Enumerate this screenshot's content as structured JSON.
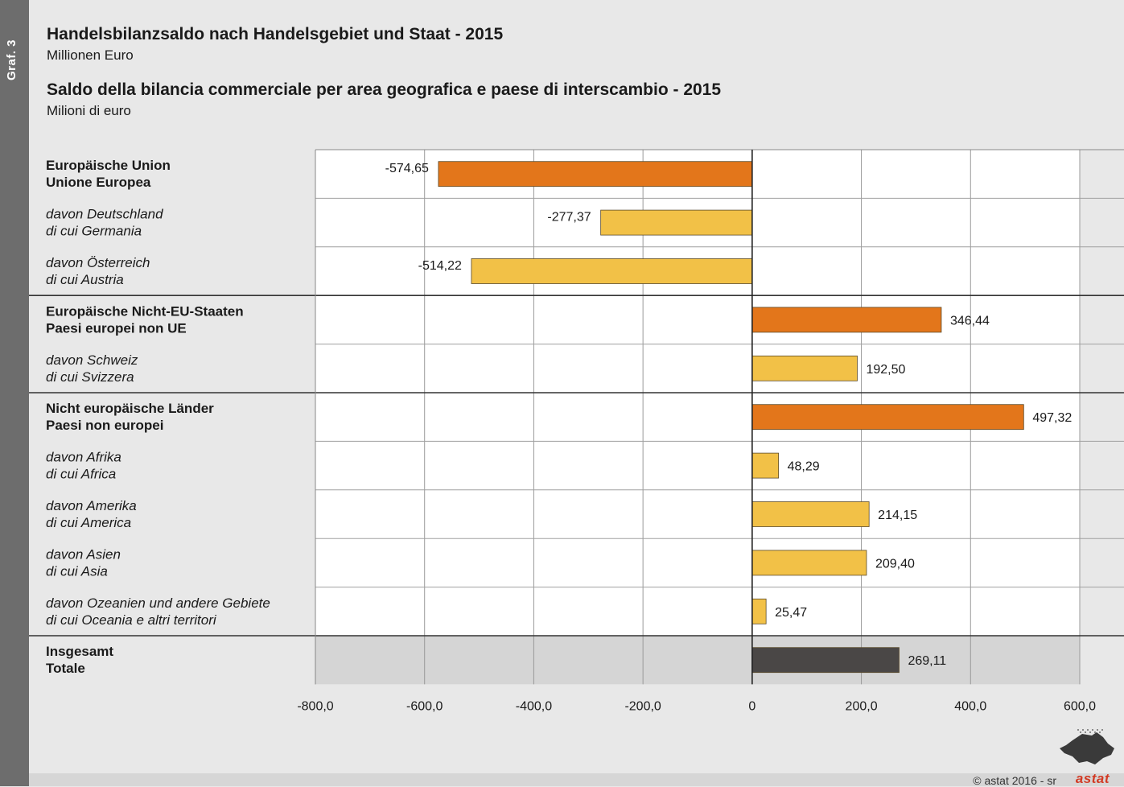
{
  "graf_tag": "Graf. 3",
  "titles": {
    "de_title": "Handelsbilanzsaldo nach Handelsgebiet und Staat - 2015",
    "de_unit": "Millionen Euro",
    "it_title": "Saldo della bilancia commerciale per area geografica e paese di interscambio - 2015",
    "it_unit": "Milioni di euro"
  },
  "colors": {
    "group_bar": "#e3761b",
    "sub_bar": "#f2c147",
    "total_bar": "#4a4746",
    "plot_bg": "#ffffff",
    "total_row_bg": "#d5d5d5",
    "page_bg": "#e8e8e8",
    "logo_red": "#d23a24"
  },
  "chart_data": {
    "type": "bar",
    "orientation": "horizontal",
    "title": "Handelsbilanzsaldo nach Handelsgebiet und Staat - 2015",
    "unit": "Millionen Euro",
    "xlim": [
      -800,
      600
    ],
    "x_ticks": [
      -800,
      -600,
      -400,
      -200,
      0,
      200,
      400,
      600
    ],
    "x_tick_labels": [
      "-800,0",
      "-600,0",
      "-400,0",
      "-200,0",
      "0",
      "200,0",
      "400,0",
      "600,0"
    ],
    "grid": true,
    "categories": [
      {
        "line1": "Europäische Union",
        "line2": "Unione Europea",
        "kind": "group",
        "value": -574.65,
        "label": "-574,65"
      },
      {
        "line1": "davon Deutschland",
        "line2": "di cui Germania",
        "kind": "sub",
        "value": -277.37,
        "label": "-277,37"
      },
      {
        "line1": "davon Österreich",
        "line2": "di cui Austria",
        "kind": "sub",
        "value": -514.22,
        "label": "-514,22"
      },
      {
        "line1": "Europäische Nicht-EU-Staaten",
        "line2": "Paesi europei non UE",
        "kind": "group",
        "value": 346.44,
        "label": "346,44"
      },
      {
        "line1": "davon Schweiz",
        "line2": "di cui Svizzera",
        "kind": "sub",
        "value": 192.5,
        "label": "192,50"
      },
      {
        "line1": "Nicht europäische Länder",
        "line2": "Paesi non europei",
        "kind": "group",
        "value": 497.32,
        "label": "497,32"
      },
      {
        "line1": "davon Afrika",
        "line2": "di cui Africa",
        "kind": "sub",
        "value": 48.29,
        "label": "48,29"
      },
      {
        "line1": "davon Amerika",
        "line2": "di cui America",
        "kind": "sub",
        "value": 214.15,
        "label": "214,15"
      },
      {
        "line1": "davon Asien",
        "line2": "di cui Asia",
        "kind": "sub",
        "value": 209.4,
        "label": "209,40"
      },
      {
        "line1": "davon Ozeanien und andere Gebiete",
        "line2": "di cui Oceania e altri territori",
        "kind": "sub",
        "value": 25.47,
        "label": "25,47"
      },
      {
        "line1": "Insgesamt",
        "line2": "Totale",
        "kind": "total",
        "value": 269.11,
        "label": "269,11"
      }
    ]
  },
  "footer": {
    "copyright": "©  astat 2016 - sr",
    "logo": "astat"
  }
}
